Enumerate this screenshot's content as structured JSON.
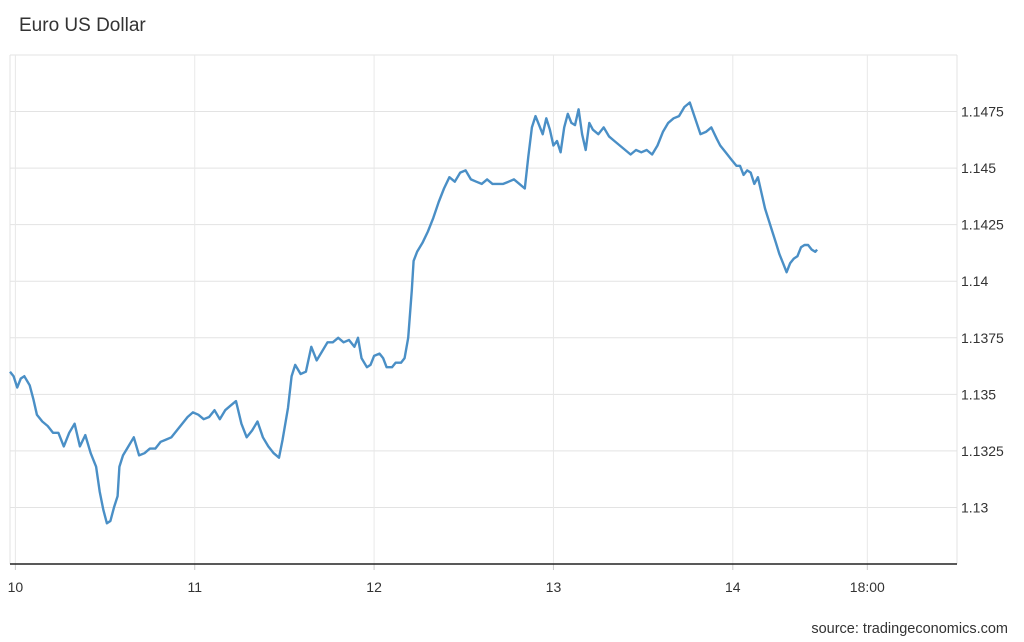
{
  "chart_data": {
    "type": "line",
    "title": "Euro US Dollar",
    "xlabel": "",
    "ylabel": "",
    "x_tick_labels": [
      {
        "label": "10",
        "day": 10.0
      },
      {
        "label": "11",
        "day": 11.0
      },
      {
        "label": "12",
        "day": 12.0
      },
      {
        "label": "13",
        "day": 13.0
      },
      {
        "label": "14",
        "day": 14.0
      },
      {
        "label": "18:00",
        "day": 14.75
      }
    ],
    "y_tick_labels": [
      "1.13",
      "1.1325",
      "1.135",
      "1.1375",
      "1.14",
      "1.1425",
      "1.145",
      "1.1475"
    ],
    "y_ticks": [
      1.13,
      1.1325,
      1.135,
      1.1375,
      1.14,
      1.1425,
      1.145,
      1.1475
    ],
    "xlim": [
      9.97,
      15.25
    ],
    "ylim": [
      1.1275,
      1.15
    ],
    "grid": true,
    "legend": "none",
    "series": [
      {
        "color": "#4a8fc6",
        "points": [
          [
            9.97,
            1.136
          ],
          [
            9.99,
            1.1358
          ],
          [
            10.01,
            1.1353
          ],
          [
            10.03,
            1.1357
          ],
          [
            10.05,
            1.1358
          ],
          [
            10.08,
            1.1354
          ],
          [
            10.1,
            1.1348
          ],
          [
            10.12,
            1.1341
          ],
          [
            10.15,
            1.1338
          ],
          [
            10.18,
            1.1336
          ],
          [
            10.21,
            1.1333
          ],
          [
            10.24,
            1.1333
          ],
          [
            10.27,
            1.1327
          ],
          [
            10.3,
            1.1333
          ],
          [
            10.33,
            1.1337
          ],
          [
            10.36,
            1.1327
          ],
          [
            10.39,
            1.1332
          ],
          [
            10.42,
            1.1324
          ],
          [
            10.45,
            1.1318
          ],
          [
            10.47,
            1.1307
          ],
          [
            10.49,
            1.1299
          ],
          [
            10.51,
            1.1293
          ],
          [
            10.53,
            1.1294
          ],
          [
            10.55,
            1.13
          ],
          [
            10.57,
            1.1305
          ],
          [
            10.58,
            1.1318
          ],
          [
            10.6,
            1.1323
          ],
          [
            10.63,
            1.1327
          ],
          [
            10.66,
            1.1331
          ],
          [
            10.69,
            1.1323
          ],
          [
            10.72,
            1.1324
          ],
          [
            10.75,
            1.1326
          ],
          [
            10.78,
            1.1326
          ],
          [
            10.81,
            1.1329
          ],
          [
            10.84,
            1.133
          ],
          [
            10.87,
            1.1331
          ],
          [
            10.9,
            1.1334
          ],
          [
            10.93,
            1.1337
          ],
          [
            10.96,
            1.134
          ],
          [
            10.99,
            1.1342
          ],
          [
            11.02,
            1.1341
          ],
          [
            11.05,
            1.1339
          ],
          [
            11.08,
            1.134
          ],
          [
            11.11,
            1.1343
          ],
          [
            11.14,
            1.1339
          ],
          [
            11.17,
            1.1343
          ],
          [
            11.2,
            1.1345
          ],
          [
            11.23,
            1.1347
          ],
          [
            11.26,
            1.1337
          ],
          [
            11.29,
            1.1331
          ],
          [
            11.32,
            1.1334
          ],
          [
            11.35,
            1.1338
          ],
          [
            11.38,
            1.1331
          ],
          [
            11.41,
            1.1327
          ],
          [
            11.44,
            1.1324
          ],
          [
            11.47,
            1.1322
          ],
          [
            11.49,
            1.133
          ],
          [
            11.52,
            1.1344
          ],
          [
            11.54,
            1.1358
          ],
          [
            11.56,
            1.1363
          ],
          [
            11.59,
            1.1359
          ],
          [
            11.62,
            1.136
          ],
          [
            11.65,
            1.1371
          ],
          [
            11.68,
            1.1365
          ],
          [
            11.71,
            1.1369
          ],
          [
            11.74,
            1.1373
          ],
          [
            11.77,
            1.1373
          ],
          [
            11.8,
            1.1375
          ],
          [
            11.83,
            1.1373
          ],
          [
            11.86,
            1.1374
          ],
          [
            11.89,
            1.1371
          ],
          [
            11.91,
            1.1375
          ],
          [
            11.93,
            1.1366
          ],
          [
            11.96,
            1.1362
          ],
          [
            11.98,
            1.1363
          ],
          [
            12.0,
            1.1367
          ],
          [
            12.03,
            1.1368
          ],
          [
            12.05,
            1.1366
          ],
          [
            12.07,
            1.1362
          ],
          [
            12.1,
            1.1362
          ],
          [
            12.12,
            1.1364
          ],
          [
            12.15,
            1.1364
          ],
          [
            12.17,
            1.1366
          ],
          [
            12.19,
            1.1375
          ],
          [
            12.21,
            1.1396
          ],
          [
            12.22,
            1.1409
          ],
          [
            12.24,
            1.1413
          ],
          [
            12.27,
            1.1417
          ],
          [
            12.3,
            1.1422
          ],
          [
            12.33,
            1.1428
          ],
          [
            12.36,
            1.1435
          ],
          [
            12.39,
            1.1441
          ],
          [
            12.42,
            1.1446
          ],
          [
            12.45,
            1.1444
          ],
          [
            12.48,
            1.1448
          ],
          [
            12.51,
            1.1449
          ],
          [
            12.54,
            1.1445
          ],
          [
            12.57,
            1.1444
          ],
          [
            12.6,
            1.1443
          ],
          [
            12.63,
            1.1445
          ],
          [
            12.66,
            1.1443
          ],
          [
            12.69,
            1.1443
          ],
          [
            12.72,
            1.1443
          ],
          [
            12.75,
            1.1444
          ],
          [
            12.78,
            1.1445
          ],
          [
            12.81,
            1.1443
          ],
          [
            12.84,
            1.1441
          ],
          [
            12.86,
            1.1455
          ],
          [
            12.88,
            1.1468
          ],
          [
            12.9,
            1.1473
          ],
          [
            12.92,
            1.1469
          ],
          [
            12.94,
            1.1465
          ],
          [
            12.96,
            1.1472
          ],
          [
            12.98,
            1.1467
          ],
          [
            13.0,
            1.146
          ],
          [
            13.02,
            1.1462
          ],
          [
            13.04,
            1.1457
          ],
          [
            13.06,
            1.1468
          ],
          [
            13.08,
            1.1474
          ],
          [
            13.1,
            1.147
          ],
          [
            13.12,
            1.1469
          ],
          [
            13.14,
            1.1476
          ],
          [
            13.16,
            1.1465
          ],
          [
            13.18,
            1.1458
          ],
          [
            13.2,
            1.147
          ],
          [
            13.22,
            1.1467
          ],
          [
            13.25,
            1.1465
          ],
          [
            13.28,
            1.1468
          ],
          [
            13.31,
            1.1464
          ],
          [
            13.34,
            1.1462
          ],
          [
            13.37,
            1.146
          ],
          [
            13.4,
            1.1458
          ],
          [
            13.43,
            1.1456
          ],
          [
            13.46,
            1.1458
          ],
          [
            13.49,
            1.1457
          ],
          [
            13.52,
            1.1458
          ],
          [
            13.55,
            1.1456
          ],
          [
            13.58,
            1.146
          ],
          [
            13.61,
            1.1466
          ],
          [
            13.64,
            1.147
          ],
          [
            13.67,
            1.1472
          ],
          [
            13.7,
            1.1473
          ],
          [
            13.73,
            1.1477
          ],
          [
            13.76,
            1.1479
          ],
          [
            13.79,
            1.1472
          ],
          [
            13.82,
            1.1465
          ],
          [
            13.85,
            1.1466
          ],
          [
            13.88,
            1.1468
          ],
          [
            13.91,
            1.1463
          ],
          [
            13.93,
            1.146
          ],
          [
            13.96,
            1.1457
          ],
          [
            13.99,
            1.1454
          ],
          [
            14.02,
            1.1451
          ],
          [
            14.04,
            1.1451
          ],
          [
            14.06,
            1.1447
          ],
          [
            14.08,
            1.1449
          ],
          [
            14.1,
            1.1448
          ],
          [
            14.12,
            1.1443
          ],
          [
            14.14,
            1.1446
          ],
          [
            14.16,
            1.1439
          ],
          [
            14.18,
            1.1432
          ],
          [
            14.2,
            1.1427
          ],
          [
            14.22,
            1.1422
          ],
          [
            14.24,
            1.1417
          ],
          [
            14.26,
            1.1412
          ],
          [
            14.28,
            1.1408
          ],
          [
            14.3,
            1.1404
          ],
          [
            14.32,
            1.1408
          ],
          [
            14.34,
            1.141
          ],
          [
            14.36,
            1.1411
          ],
          [
            14.38,
            1.1415
          ],
          [
            14.4,
            1.1416
          ],
          [
            14.42,
            1.1416
          ],
          [
            14.44,
            1.1414
          ],
          [
            14.46,
            1.1413
          ],
          [
            14.47,
            1.1414
          ]
        ]
      }
    ],
    "source_text": "source: tradingeconomics.com"
  }
}
